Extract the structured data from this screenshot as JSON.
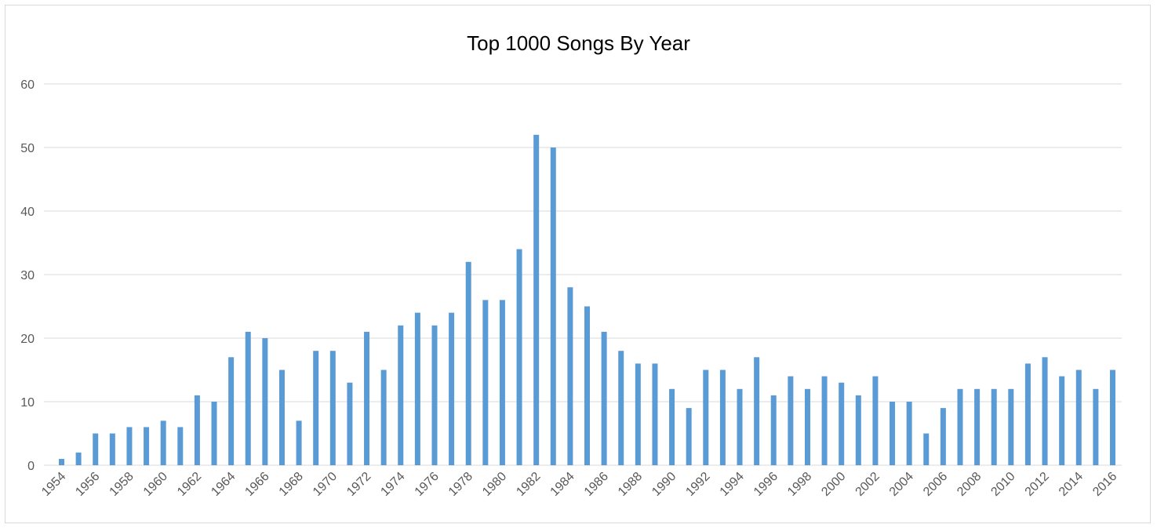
{
  "chart_data": {
    "type": "bar",
    "title": "Top 1000 Songs By Year",
    "xlabel": "",
    "ylabel": "",
    "ylim": [
      0,
      60
    ],
    "yticks": [
      0,
      10,
      20,
      30,
      40,
      50,
      60
    ],
    "grid": true,
    "legend": "none",
    "bar_color": "#5b9bd5",
    "grid_color": "#d9d9d9",
    "categories": [
      "1954",
      "1955",
      "1956",
      "1957",
      "1958",
      "1959",
      "1960",
      "1961",
      "1962",
      "1963",
      "1964",
      "1965",
      "1966",
      "1967",
      "1968",
      "1969",
      "1970",
      "1971",
      "1972",
      "1973",
      "1974",
      "1975",
      "1976",
      "1977",
      "1978",
      "1979",
      "1980",
      "1981",
      "1982",
      "1983",
      "1984",
      "1985",
      "1986",
      "1987",
      "1988",
      "1989",
      "1990",
      "1991",
      "1992",
      "1993",
      "1994",
      "1995",
      "1996",
      "1997",
      "1998",
      "1999",
      "2000",
      "2001",
      "2002",
      "2003",
      "2004",
      "2005",
      "2006",
      "2007",
      "2008",
      "2009",
      "2010",
      "2011",
      "2012",
      "2013",
      "2014",
      "2015",
      "2016"
    ],
    "values": [
      1,
      2,
      5,
      5,
      6,
      6,
      7,
      6,
      11,
      10,
      17,
      21,
      20,
      15,
      7,
      18,
      18,
      13,
      21,
      15,
      22,
      24,
      22,
      24,
      32,
      26,
      26,
      34,
      52,
      50,
      28,
      25,
      21,
      18,
      16,
      16,
      12,
      9,
      15,
      15,
      12,
      17,
      11,
      14,
      12,
      14,
      13,
      11,
      14,
      10,
      10,
      5,
      9,
      12,
      12,
      12,
      12,
      16,
      17,
      14,
      15,
      12,
      15
    ],
    "shown_x_labels": [
      "1954",
      "1956",
      "1958",
      "1960",
      "1962",
      "1964",
      "1966",
      "1968",
      "1970",
      "1972",
      "1974",
      "1976",
      "1978",
      "1980",
      "1982",
      "1984",
      "1986",
      "1988",
      "1990",
      "1992",
      "1994",
      "1996",
      "1998",
      "2000",
      "2002",
      "2004",
      "2006",
      "2008",
      "2010",
      "2012",
      "2014",
      "2016"
    ]
  }
}
